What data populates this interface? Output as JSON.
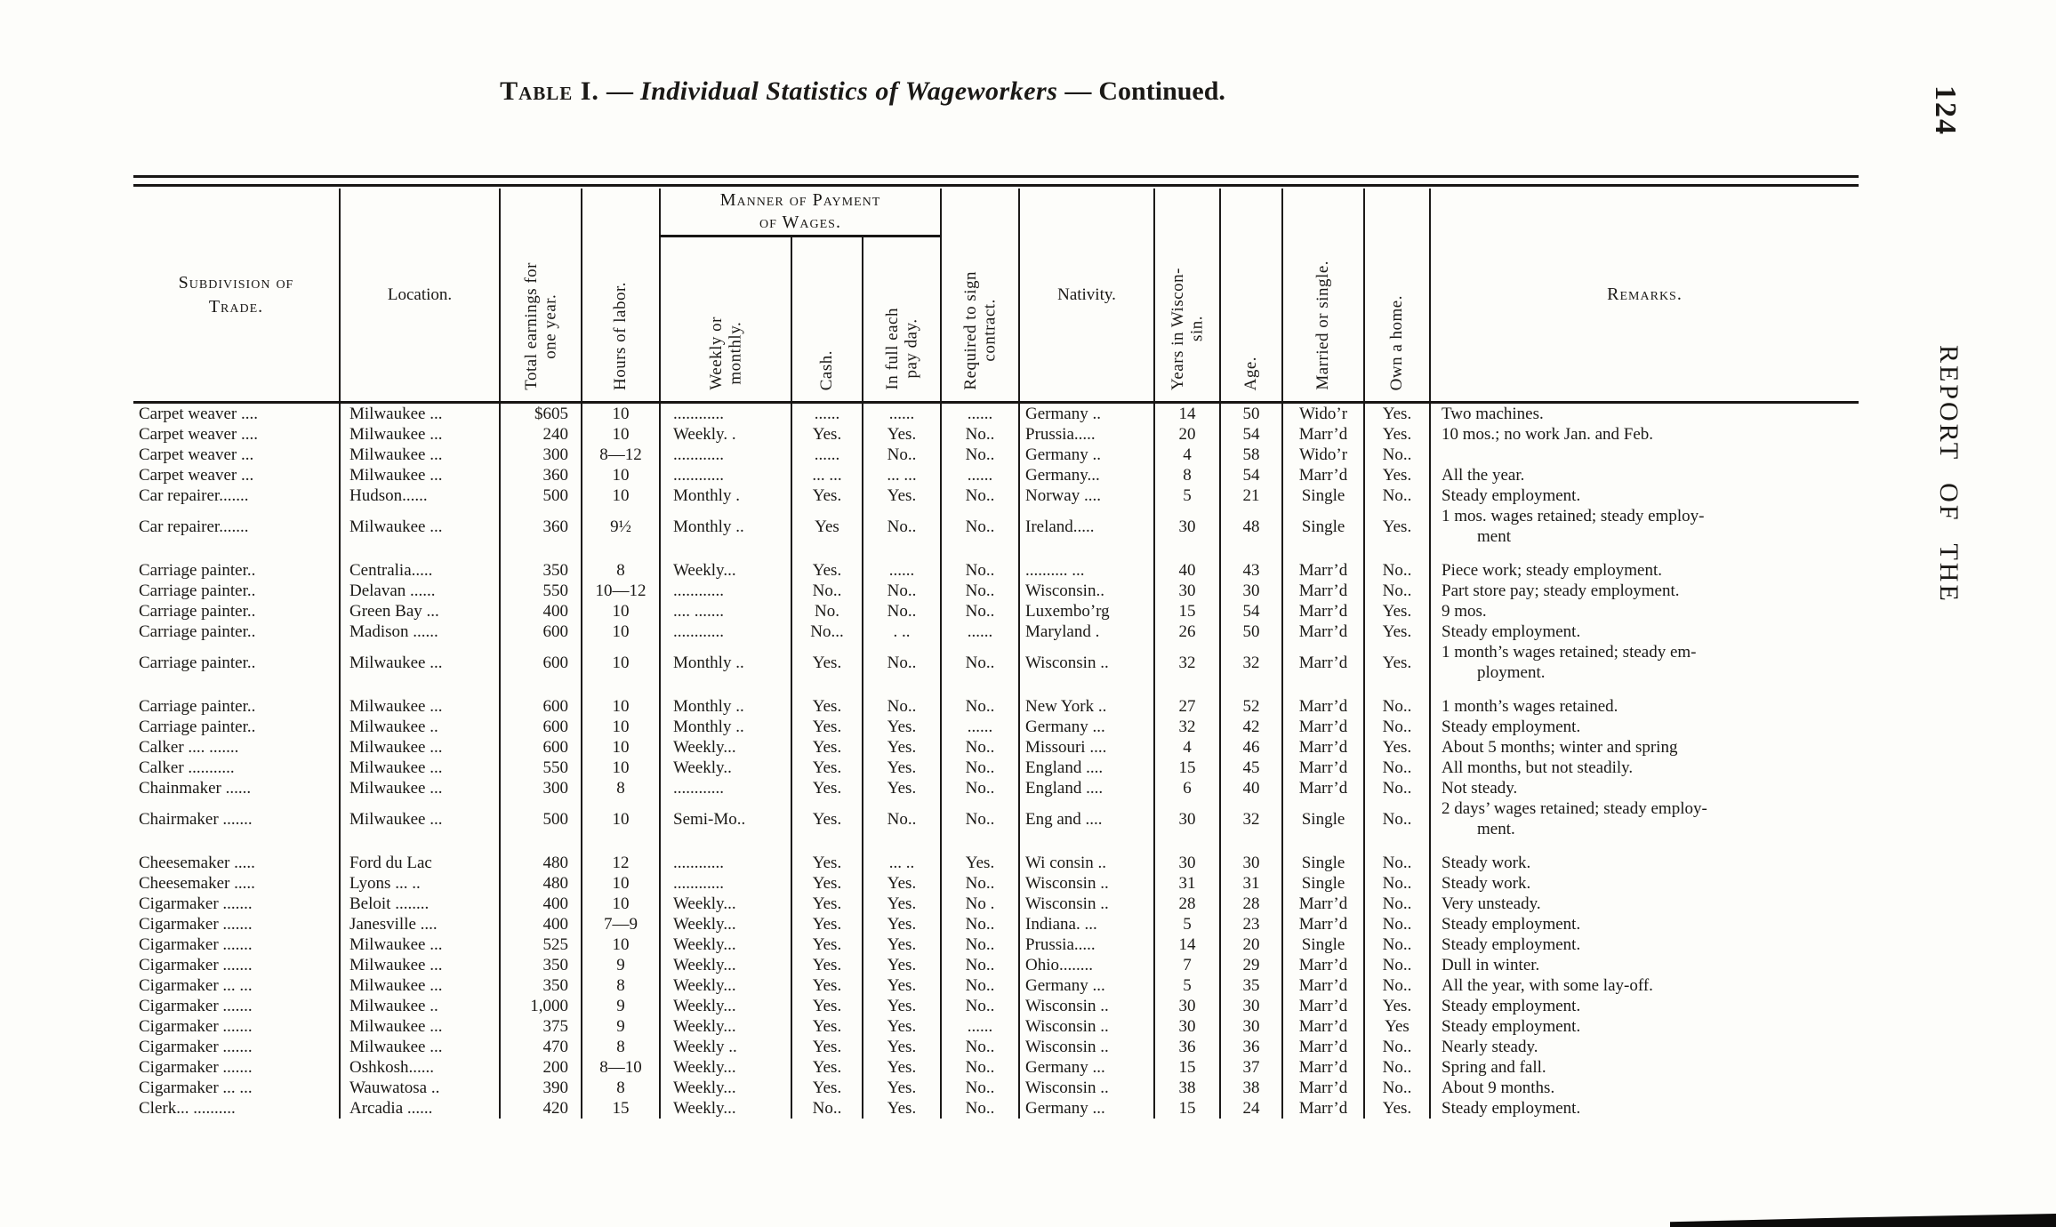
{
  "page": {
    "title": {
      "part1": "Table I.",
      "dash": "—",
      "part2": "Individual Statistics of Wageworkers",
      "part3": "Continued."
    },
    "page_number": "124",
    "running_head": "REPORT OF THE"
  },
  "table": {
    "headers": {
      "subdivision": "Subdivision of\nTrade.",
      "location": "Location.",
      "earnings": "Total earnings for\none year.",
      "hours": "Hours of labor.",
      "payment_group": "Manner of Payment\nof Wages.",
      "weekly": "Weekly or\nmonthly.",
      "cash": "Cash.",
      "in_full": "In full each\npay day.",
      "contract": "Required to sign\ncontract.",
      "nativity": "Nativity.",
      "years": "Years in Wiscon-\nsin.",
      "age": "Age.",
      "married": "Married or single.",
      "own_home": "Own a home.",
      "remarks": "Remarks."
    },
    "col_keys": [
      "trade",
      "location",
      "earnings",
      "hours",
      "weekly",
      "cash",
      "infull",
      "contract",
      "nativity",
      "years",
      "age",
      "married",
      "ownhome",
      "remarks"
    ],
    "gap_after": [
      5,
      10,
      16
    ],
    "rows": [
      [
        "Carpet weaver ....",
        "Milwaukee ...",
        "$605",
        "10",
        "............",
        "......",
        "......",
        "......",
        "Germany ..",
        "14",
        "50",
        "Wido’r",
        "Yes.",
        "Two machines."
      ],
      [
        "Carpet weaver ....",
        "Milwaukee ...",
        "240",
        "10",
        "Weekly. .",
        "Yes.",
        "Yes.",
        "No..",
        "Prussia.....",
        "20",
        "54",
        "Marr’d",
        "Yes.",
        "10 mos.; no work Jan. and Feb."
      ],
      [
        "Carpet weaver ...",
        "Milwaukee ...",
        "300",
        "8—12",
        "............",
        "......",
        "No..",
        "No..",
        "Germany ..",
        "4",
        "58",
        "Wido’r",
        "No..",
        ""
      ],
      [
        "Carpet weaver ...",
        "Milwaukee ...",
        "360",
        "10",
        "............",
        "... ...",
        "... ...",
        "......",
        "Germany...",
        "8",
        "54",
        "Marr’d",
        "Yes.",
        "All the year."
      ],
      [
        "Car repairer.......",
        "Hudson......",
        "500",
        "10",
        "Monthly .",
        "Yes.",
        "Yes.",
        "No..",
        "Norway ....",
        "5",
        "21",
        "Single",
        "No..",
        "Steady employment."
      ],
      [
        "Car repairer.......",
        "Milwaukee ...",
        "360",
        "9½",
        "Monthly ..",
        "Yes",
        "No..",
        "No..",
        "Ireland.....",
        "30",
        "48",
        "Single",
        "Yes.",
        "1 mos. wages retained; steady employ-\nment"
      ],
      [
        "Carriage painter..",
        "Centralia.....",
        "350",
        "8",
        "Weekly...",
        "Yes.",
        "......",
        "No..",
        ".......... ...",
        "40",
        "43",
        "Marr’d",
        "No..",
        "Piece work; steady employment."
      ],
      [
        "Carriage painter..",
        "Delavan ......",
        "550",
        "10—12",
        "............",
        "No..",
        "No..",
        "No..",
        "Wisconsin..",
        "30",
        "30",
        "Marr’d",
        "No..",
        "Part store pay; steady employment."
      ],
      [
        "Carriage painter..",
        "Green Bay ...",
        "400",
        "10",
        ".... .......",
        "No.",
        "No..",
        "No..",
        "Luxembo’rg",
        "15",
        "54",
        "Marr’d",
        "Yes.",
        "9 mos."
      ],
      [
        "Carriage painter..",
        "Madison ......",
        "600",
        "10",
        "............",
        "No...",
        ". ..",
        "......",
        "Maryland .",
        "26",
        "50",
        "Marr’d",
        "Yes.",
        "Steady employment."
      ],
      [
        "Carriage painter..",
        "Milwaukee ...",
        "600",
        "10",
        "Monthly ..",
        "Yes.",
        "No..",
        "No..",
        "Wisconsin ..",
        "32",
        "32",
        "Marr’d",
        "Yes.",
        "1 month’s wages retained; steady em-\nployment."
      ],
      [
        "Carriage painter..",
        "Milwaukee ...",
        "600",
        "10",
        "Monthly ..",
        "Yes.",
        "No..",
        "No..",
        "New York ..",
        "27",
        "52",
        "Marr’d",
        "No..",
        "1 month’s wages retained."
      ],
      [
        "Carriage painter..",
        "Milwaukee ..",
        "600",
        "10",
        "Monthly ..",
        "Yes.",
        "Yes.",
        "......",
        "Germany ...",
        "32",
        "42",
        "Marr’d",
        "No..",
        "Steady employment."
      ],
      [
        "Calker .... .......",
        "Milwaukee ...",
        "600",
        "10",
        "Weekly...",
        "Yes.",
        "Yes.",
        "No..",
        "Missouri ....",
        "4",
        "46",
        "Marr’d",
        "Yes.",
        "About 5 months; winter and spring"
      ],
      [
        "Calker ...........",
        "Milwaukee ...",
        "550",
        "10",
        "Weekly..",
        "Yes.",
        "Yes.",
        "No..",
        "England ....",
        "15",
        "45",
        "Marr’d",
        "No..",
        "All months, but not steadily."
      ],
      [
        "Chainmaker ......",
        "Milwaukee ...",
        "300",
        "8",
        "............",
        "Yes.",
        "Yes.",
        "No..",
        "England ....",
        "6",
        "40",
        "Marr’d",
        "No..",
        "Not steady."
      ],
      [
        "Chairmaker .......",
        "Milwaukee ...",
        "500",
        "10",
        "Semi-Mo..",
        "Yes.",
        "No..",
        "No..",
        "Eng and ....",
        "30",
        "32",
        "Single",
        "No..",
        "2 days’ wages retained; steady employ-\nment."
      ],
      [
        "Cheesemaker .....",
        "Ford du Lac",
        "480",
        "12",
        "............",
        "Yes.",
        "... ..",
        "Yes.",
        "Wi consin ..",
        "30",
        "30",
        "Single",
        "No..",
        "Steady work."
      ],
      [
        "Cheesemaker .....",
        "Lyons ... ..",
        "480",
        "10",
        "............",
        "Yes.",
        "Yes.",
        "No..",
        "Wisconsin ..",
        "31",
        "31",
        "Single",
        "No..",
        "Steady work."
      ],
      [
        "Cigarmaker .......",
        "Beloit ........",
        "400",
        "10",
        "Weekly...",
        "Yes.",
        "Yes.",
        "No .",
        "Wisconsin ..",
        "28",
        "28",
        "Marr’d",
        "No..",
        "Very unsteady."
      ],
      [
        "Cigarmaker .......",
        "Janesville ....",
        "400",
        "7—9",
        "Weekly...",
        "Yes.",
        "Yes.",
        "No..",
        "Indiana. ...",
        "5",
        "23",
        "Marr’d",
        "No..",
        "Steady employment."
      ],
      [
        "Cigarmaker .......",
        "Milwaukee ...",
        "525",
        "10",
        "Weekly...",
        "Yes.",
        "Yes.",
        "No..",
        "Prussia.....",
        "14",
        "20",
        "Single",
        "No..",
        "Steady employment."
      ],
      [
        "Cigarmaker .......",
        "Milwaukee ...",
        "350",
        "9",
        "Weekly...",
        "Yes.",
        "Yes.",
        "No..",
        "Ohio........",
        "7",
        "29",
        "Marr’d",
        "No..",
        "Dull in winter."
      ],
      [
        "Cigarmaker ... ...",
        "Milwaukee ...",
        "350",
        "8",
        "Weekly...",
        "Yes.",
        "Yes.",
        "No..",
        "Germany ...",
        "5",
        "35",
        "Marr’d",
        "No..",
        "All the year, with some lay-off."
      ],
      [
        "Cigarmaker .......",
        "Milwaukee ..",
        "1,000",
        "9",
        "Weekly...",
        "Yes.",
        "Yes.",
        "No..",
        "Wisconsin ..",
        "30",
        "30",
        "Marr’d",
        "Yes.",
        "Steady employment."
      ],
      [
        "Cigarmaker .......",
        "Milwaukee ...",
        "375",
        "9",
        "Weekly...",
        "Yes.",
        "Yes.",
        "......",
        "Wisconsin ..",
        "30",
        "30",
        "Marr’d",
        "Yes",
        "Steady employment."
      ],
      [
        "Cigarmaker .......",
        "Milwaukee ...",
        "470",
        "8",
        "Weekly ..",
        "Yes.",
        "Yes.",
        "No..",
        "Wisconsin ..",
        "36",
        "36",
        "Marr’d",
        "No..",
        "Nearly steady."
      ],
      [
        "Cigarmaker .......",
        "Oshkosh......",
        "200",
        "8—10",
        "Weekly...",
        "Yes.",
        "Yes.",
        "No..",
        "Germany ...",
        "15",
        "37",
        "Marr’d",
        "No..",
        "Spring and fall."
      ],
      [
        "Cigarmaker ... ...",
        "Wauwatosa ..",
        "390",
        "8",
        "Weekly...",
        "Yes.",
        "Yes.",
        "No..",
        "Wisconsin ..",
        "38",
        "38",
        "Marr’d",
        "No..",
        "About 9 months."
      ],
      [
        "Clerk... ..........",
        "Arcadia ......",
        "420",
        "15",
        "Weekly...",
        "No..",
        "Yes.",
        "No..",
        "Germany ...",
        "15",
        "24",
        "Marr’d",
        "Yes.",
        "Steady employment."
      ]
    ]
  }
}
